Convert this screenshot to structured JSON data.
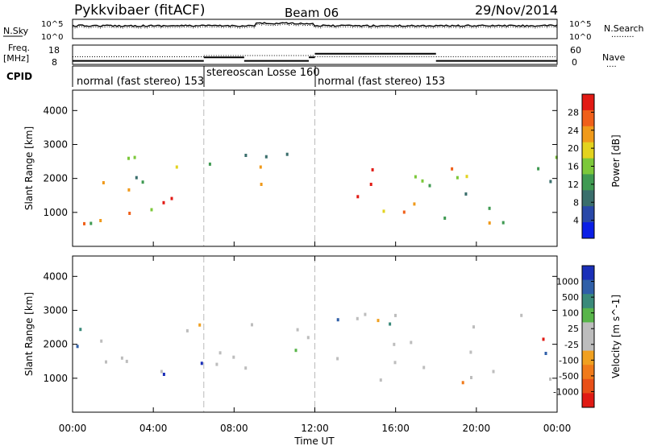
{
  "header": {
    "station": "Pykkvibaer (fitACF)",
    "beam": "Beam 06",
    "date": "29/Nov/2014"
  },
  "noise_panel": {
    "left_label": "N.Sky",
    "left_ticks": [
      "10^5",
      "10^0"
    ],
    "right_ticks": [
      "10^5",
      "10^0"
    ],
    "right_label": "N.Search",
    "right_legend_line": "........."
  },
  "freq_panel": {
    "label_top": "Freq.",
    "label_unit": "[MHz]",
    "left_ticks": [
      "18",
      "8"
    ],
    "right_ticks": [
      "60",
      "0"
    ],
    "right_label": "Nave",
    "right_legend_line": "....",
    "freq_levels": [
      {
        "t0": 0,
        "t1": 6.5,
        "mhz": 10.0
      },
      {
        "t0": 6.5,
        "t1": 8.5,
        "mhz": 12.0
      },
      {
        "t0": 8.5,
        "t1": 11.7,
        "mhz": 10.0
      },
      {
        "t0": 11.7,
        "t1": 12.0,
        "mhz": 12.0
      },
      {
        "t0": 12.0,
        "t1": 18.0,
        "mhz": 14.0
      },
      {
        "t0": 18.0,
        "t1": 24.0,
        "mhz": 10.0
      }
    ],
    "nave_levels": [
      {
        "t0": 0,
        "t1": 6.5,
        "nave": 26
      },
      {
        "t0": 6.5,
        "t1": 12.0,
        "nave": 30
      },
      {
        "t0": 12.0,
        "t1": 18.0,
        "nave": 26
      },
      {
        "t0": 18.0,
        "t1": 24.0,
        "nave": 26
      }
    ]
  },
  "cpid": {
    "label": "CPID",
    "segments": [
      {
        "t0": 0,
        "t1": 6.5,
        "text": "normal (fast stereo) 153"
      },
      {
        "t0": 6.5,
        "t1": 12.0,
        "text": "stereoscan Losse 160"
      },
      {
        "t0": 12.0,
        "t1": 24.0,
        "text": "normal (fast stereo) 153"
      }
    ]
  },
  "colors": {
    "power": [
      "#0a1ee6",
      "#2948a8",
      "#3a6e6c",
      "#3f9a52",
      "#7cc83a",
      "#e3d31e",
      "#f09a1a",
      "#f0601a",
      "#e21a14"
    ],
    "velocity": [
      "#1a2fb8",
      "#2f5fa8",
      "#3a8a7a",
      "#58b54a",
      "#bdbdbd",
      "#bdbdbd",
      "#f0a020",
      "#f07a1a",
      "#e85018",
      "#e01a14"
    ]
  },
  "chart_data": [
    {
      "type": "heatmap",
      "title": "",
      "ylabel": "Slant Range [km]",
      "yticks": [
        "1000",
        "2000",
        "3000",
        "4000"
      ],
      "ylim": [
        0,
        4600
      ],
      "xlim": [
        0,
        24
      ],
      "colorbar_label": "Power [dB]",
      "colorbar_ticks": [
        "4",
        "8",
        "12",
        "16",
        "20",
        "24",
        "28"
      ],
      "colorbar_range": [
        0,
        32
      ],
      "regions": [
        {
          "t0": 0.1,
          "t1": 6.5,
          "r0": 600,
          "r1": 3100,
          "level": 0.6
        },
        {
          "t0": 0.3,
          "t1": 6.3,
          "r0": 800,
          "r1": 1500,
          "level": 0.85
        },
        {
          "t0": 6.7,
          "t1": 8.0,
          "r0": 1600,
          "r1": 2800,
          "level": 0.2
        },
        {
          "t0": 8.0,
          "t1": 11.8,
          "r0": 900,
          "r1": 2900,
          "level": 0.55
        },
        {
          "t0": 12.0,
          "t1": 17.0,
          "r0": 800,
          "r1": 2400,
          "level": 0.85
        },
        {
          "t0": 16.0,
          "t1": 24.0,
          "r0": 600,
          "r1": 3000,
          "level": 0.55
        }
      ]
    },
    {
      "type": "heatmap",
      "title": "",
      "ylabel": "Slant Range [km]",
      "yticks": [
        "1000",
        "2000",
        "3000",
        "4000"
      ],
      "ylim": [
        0,
        4600
      ],
      "xlim": [
        0,
        24
      ],
      "xticks": [
        "00:00",
        "04:00",
        "08:00",
        "12:00",
        "16:00",
        "20:00",
        "00:00"
      ],
      "xlabel": "Time UT",
      "colorbar_label": "Velocity [m s^-1]",
      "colorbar_ticks": [
        "1000",
        "500",
        "100",
        "25",
        "-25",
        "-100",
        "-500",
        "-1000"
      ],
      "colorbar_range": [
        -1200,
        1200
      ],
      "regions": [
        {
          "t0": 0.1,
          "t1": 6.5,
          "r0": 600,
          "r1": 3100,
          "level": 0.5
        },
        {
          "t0": 6.7,
          "t1": 11.8,
          "r0": 900,
          "r1": 3000,
          "level": 0.45
        },
        {
          "t0": 12.0,
          "t1": 24.0,
          "r0": 500,
          "r1": 3000,
          "level": 0.45
        }
      ]
    }
  ]
}
